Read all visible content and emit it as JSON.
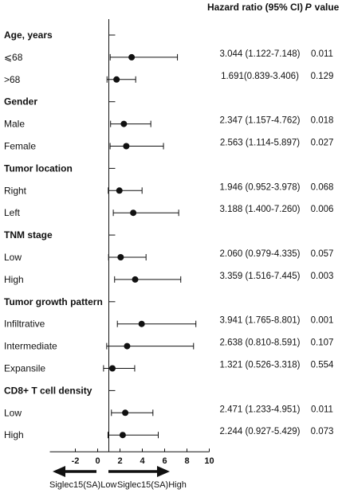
{
  "chart_data": {
    "type": "forest",
    "headers": {
      "hazard_ratio": "Hazard ratio (95% CI)",
      "p_value_italic": "P",
      "p_value_rest": "value"
    },
    "x_axis": {
      "ticks": [
        -2,
        0,
        2,
        4,
        6,
        8,
        10
      ],
      "xlim": [
        -4,
        10
      ],
      "reference": 1
    },
    "direction_labels": {
      "left": "Siglec15(SA)Low",
      "right": "Siglec15(SA)High"
    },
    "rows": [
      {
        "type": "group",
        "label": "Age, years"
      },
      {
        "type": "item",
        "label": "⩽68",
        "hr": 3.044,
        "lower": 1.122,
        "upper": 7.148,
        "hr_text": "3.044 (1.122-7.148)",
        "p": "0.011"
      },
      {
        "type": "item",
        "label": ">68",
        "hr": 1.691,
        "lower": 0.839,
        "upper": 3.406,
        "hr_text": "1.691(0.839-3.406)",
        "p": "0.129"
      },
      {
        "type": "group",
        "label": "Gender"
      },
      {
        "type": "item",
        "label": "Male",
        "hr": 2.347,
        "lower": 1.157,
        "upper": 4.762,
        "hr_text": "2.347 (1.157-4.762)",
        "p": "0.018"
      },
      {
        "type": "item",
        "label": "Female",
        "hr": 2.563,
        "lower": 1.114,
        "upper": 5.897,
        "hr_text": "2.563 (1.114-5.897)",
        "p": "0.027"
      },
      {
        "type": "group",
        "label": "Tumor location"
      },
      {
        "type": "item",
        "label": "Right",
        "hr": 1.946,
        "lower": 0.952,
        "upper": 3.978,
        "hr_text": "1.946 (0.952-3.978)",
        "p": "0.068"
      },
      {
        "type": "item",
        "label": "Left",
        "hr": 3.188,
        "lower": 1.4,
        "upper": 7.26,
        "hr_text": "3.188 (1.400-7.260)",
        "p": "0.006"
      },
      {
        "type": "group",
        "label": "TNM stage"
      },
      {
        "type": "item",
        "label": "Low",
        "hr": 2.06,
        "lower": 0.979,
        "upper": 4.335,
        "hr_text": "2.060 (0.979-4.335)",
        "p": "0.057"
      },
      {
        "type": "item",
        "label": "High",
        "hr": 3.359,
        "lower": 1.516,
        "upper": 7.445,
        "hr_text": "3.359 (1.516-7.445)",
        "p": "0.003"
      },
      {
        "type": "group",
        "label": "Tumor growth pattern"
      },
      {
        "type": "item",
        "label": "Infiltrative",
        "hr": 3.941,
        "lower": 1.765,
        "upper": 8.801,
        "hr_text": "3.941 (1.765-8.801)",
        "p": "0.001"
      },
      {
        "type": "item",
        "label": "Intermediate",
        "hr": 2.638,
        "lower": 0.81,
        "upper": 8.591,
        "hr_text": "2.638 (0.810-8.591)",
        "p": "0.107"
      },
      {
        "type": "item",
        "label": "Expansile",
        "hr": 1.321,
        "lower": 0.526,
        "upper": 3.318,
        "hr_text": "1.321 (0.526-3.318)",
        "p": "0.554"
      },
      {
        "type": "group",
        "label": "CD8+ T cell density"
      },
      {
        "type": "item",
        "label": "Low",
        "hr": 2.471,
        "lower": 1.233,
        "upper": 4.951,
        "hr_text": "2.471 (1.233-4.951)",
        "p": "0.011"
      },
      {
        "type": "item",
        "label": "High",
        "hr": 2.244,
        "lower": 0.927,
        "upper": 5.429,
        "hr_text": "2.244 (0.927-5.429)",
        "p": "0.073"
      }
    ]
  }
}
